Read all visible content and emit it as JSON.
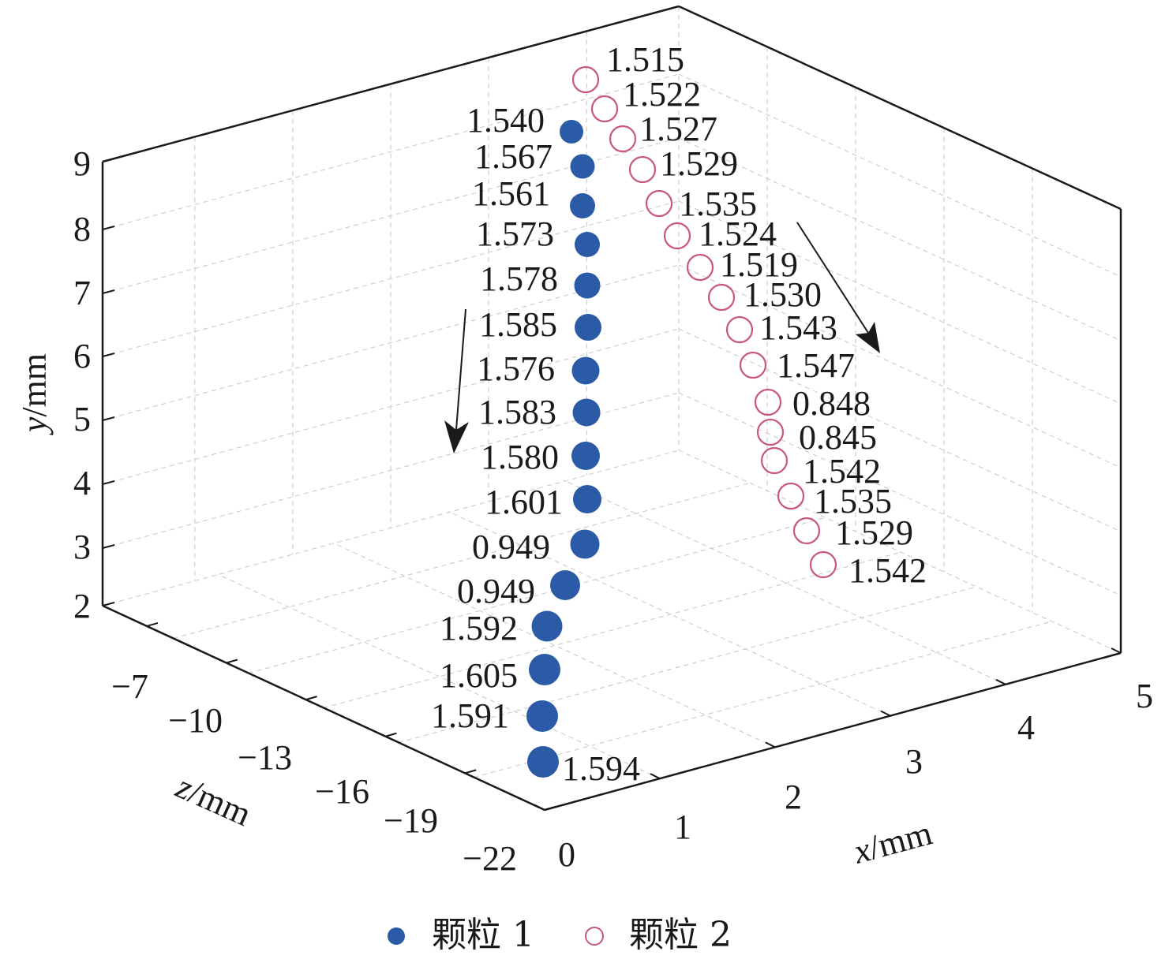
{
  "chart_data": {
    "type": "scatter",
    "xlabel_prefix": "x",
    "xlabel_unit": "/mm",
    "ylabel_prefix": "y",
    "ylabel_unit": "/mm",
    "zlabel_prefix": "z",
    "zlabel_unit": "/mm",
    "y_ticks": [
      "2",
      "3",
      "4",
      "5",
      "6",
      "7",
      "8",
      "9"
    ],
    "z_ticks": [
      "−7",
      "−10",
      "−13",
      "−16",
      "−19",
      "−22"
    ],
    "x_ticks": [
      "0",
      "1",
      "2",
      "3",
      "4",
      "5"
    ],
    "ylim": [
      2,
      9
    ],
    "zlim": [
      -22,
      -7
    ],
    "xlim": [
      0,
      5
    ],
    "colors": {
      "particle1": "#2b5ba7",
      "particle2": "#c8587a",
      "axis": "#1a1a1a",
      "grid": "#cfcfcf"
    },
    "legend": {
      "placement": "bottom-center",
      "entries": [
        "颗粒 1",
        "颗粒 2"
      ]
    },
    "series": [
      {
        "name": "颗粒 1",
        "marker": "filled-circle",
        "labels": [
          "1.540",
          "1.567",
          "1.561",
          "1.573",
          "1.578",
          "1.585",
          "1.576",
          "1.583",
          "1.580",
          "1.601",
          "0.949",
          "0.949",
          "1.592",
          "1.605",
          "1.591",
          "1.594"
        ]
      },
      {
        "name": "颗粒 2",
        "marker": "open-circle",
        "labels": [
          "1.515",
          "1.522",
          "1.527",
          "1.529",
          "1.535",
          "1.524",
          "1.519",
          "1.530",
          "1.543",
          "1.547",
          "0.848",
          "0.845",
          "1.542",
          "1.535",
          "1.529",
          "1.542"
        ]
      }
    ]
  }
}
